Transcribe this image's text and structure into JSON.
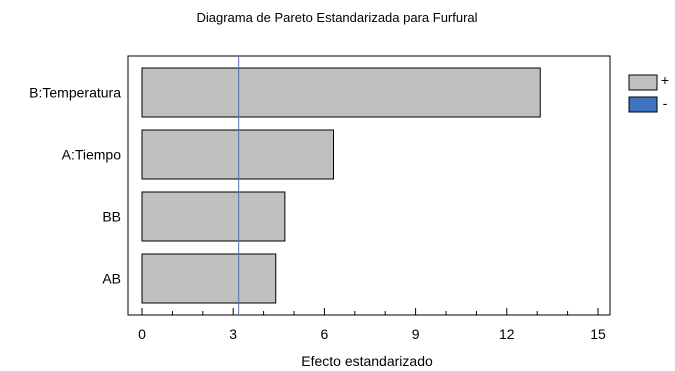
{
  "chart_data": {
    "type": "bar",
    "orientation": "horizontal",
    "title": "Diagrama de Pareto Estandarizada para Furfural",
    "xlabel": "Efecto estandarizado",
    "ylabel": "",
    "categories": [
      "B:Temperatura",
      "A:Tiempo",
      "BB",
      "AB"
    ],
    "values": [
      13.1,
      6.3,
      4.7,
      4.4
    ],
    "signs": [
      "+",
      "+",
      "+",
      "+"
    ],
    "xlim": [
      0,
      15
    ],
    "xticks": [
      0,
      3,
      6,
      9,
      12,
      15
    ],
    "x_tick_labels": [
      "0",
      "3",
      "6",
      "9",
      "12",
      "15"
    ],
    "reference_line": 3.18,
    "grid": false,
    "legend": {
      "placement": "top-right",
      "entries": [
        {
          "label": "+",
          "color": "#c0c0c0"
        },
        {
          "label": "-",
          "color": "#3f72c0"
        }
      ]
    },
    "colors": {
      "positive": "#c0c0c0",
      "negative": "#3f72c0",
      "reference": "#5a6fb0"
    }
  }
}
